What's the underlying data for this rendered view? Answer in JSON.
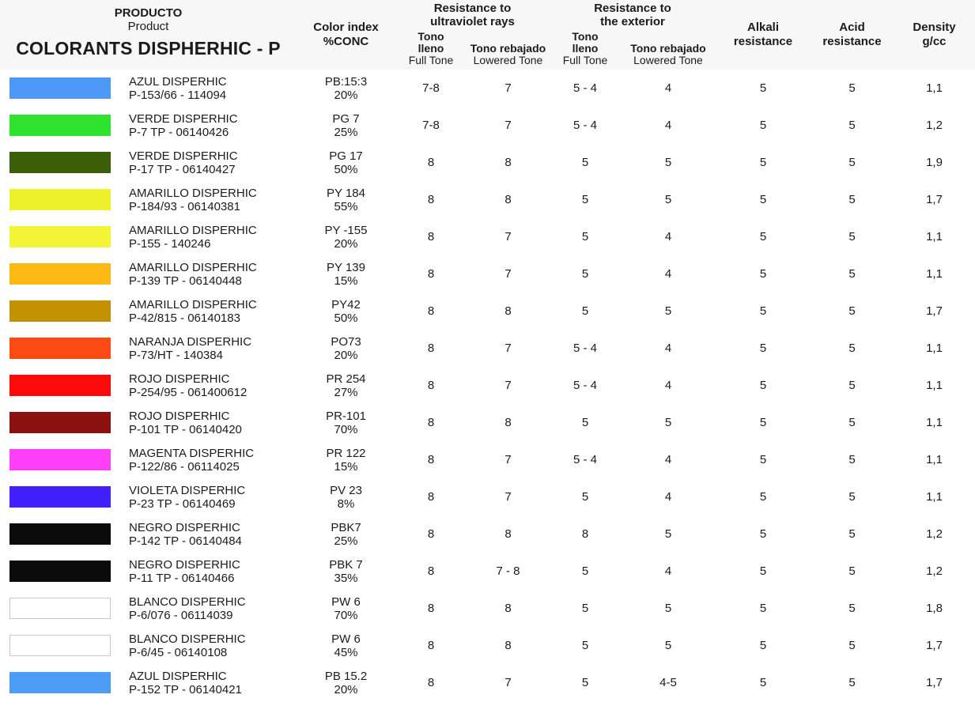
{
  "header": {
    "producto": "PRODUCTO",
    "product": "Product",
    "title": "COLORANTS DISPHERHIC - P",
    "color_index_line1": "Color index",
    "color_index_line2": "%CONC",
    "uv_title_line1": "Resistance to",
    "uv_title_line2": "ultraviolet rays",
    "ext_title_line1": "Resistance to",
    "ext_title_line2": "the exterior",
    "full_tone_line1": "Tono",
    "full_tone_line2": "lleno",
    "full_tone_line3": "Full Tone",
    "lowered_tone_line1": "Tono rebajado",
    "lowered_tone_line2": "Lowered Tone",
    "alkali_line1": "Alkali",
    "alkali_line2": "resistance",
    "acid_line1": "Acid",
    "acid_line2": "resistance",
    "density_line1": "Density",
    "density_line2": "g/cc"
  },
  "rows": [
    {
      "swatch_color": "#4d99f7",
      "name": "AZUL DISPERHIC",
      "code": "P-153/66 - 114094",
      "color_index": "PB:15:3",
      "conc": "20%",
      "uv_full": "7-8",
      "uv_lowered": "7",
      "ext_full": "5 - 4",
      "ext_lowered": "4",
      "alkali": "5",
      "acid": "5",
      "density": "1,1"
    },
    {
      "swatch_color": "#2ee22e",
      "name": "VERDE DISPERHIC",
      "code": "P-7 TP - 06140426",
      "color_index": "PG 7",
      "conc": "25%",
      "uv_full": "7-8",
      "uv_lowered": "7",
      "ext_full": "5 - 4",
      "ext_lowered": "4",
      "alkali": "5",
      "acid": "5",
      "density": "1,2"
    },
    {
      "swatch_color": "#3d5f0a",
      "name": "VERDE DISPERHIC",
      "code": "P-17 TP - 06140427",
      "color_index": "PG 17",
      "conc": "50%",
      "uv_full": "8",
      "uv_lowered": "8",
      "ext_full": "5",
      "ext_lowered": "5",
      "alkali": "5",
      "acid": "5",
      "density": "1,9"
    },
    {
      "swatch_color": "#edf22d",
      "name": "AMARILLO DISPERHIC",
      "code": "P-184/93 - 06140381",
      "color_index": "PY 184",
      "conc": "55%",
      "uv_full": "8",
      "uv_lowered": "8",
      "ext_full": "5",
      "ext_lowered": "5",
      "alkali": "5",
      "acid": "5",
      "density": "1,7"
    },
    {
      "swatch_color": "#f4f436",
      "name": "AMARILLO DISPERHIC",
      "code": "P-155 - 140246",
      "color_index": "PY -155",
      "conc": "20%",
      "uv_full": "8",
      "uv_lowered": "7",
      "ext_full": "5",
      "ext_lowered": "4",
      "alkali": "5",
      "acid": "5",
      "density": "1,1"
    },
    {
      "swatch_color": "#fdb813",
      "name": "AMARILLO DISPERHIC",
      "code": "P-139 TP - 06140448",
      "color_index": "PY 139",
      "conc": "15%",
      "uv_full": "8",
      "uv_lowered": "7",
      "ext_full": "5",
      "ext_lowered": "4",
      "alkali": "5",
      "acid": "5",
      "density": "1,1"
    },
    {
      "swatch_color": "#c29202",
      "name": "AMARILLO DISPERHIC",
      "code": "P-42/815 - 06140183",
      "color_index": "PY42",
      "conc": "50%",
      "uv_full": "8",
      "uv_lowered": "8",
      "ext_full": "5",
      "ext_lowered": "5",
      "alkali": "5",
      "acid": "5",
      "density": "1,7"
    },
    {
      "swatch_color": "#fb4a14",
      "name": "NARANJA DISPERHIC",
      "code": "P-73/HT - 140384",
      "color_index": "PO73",
      "conc": "20%",
      "uv_full": "8",
      "uv_lowered": "7",
      "ext_full": "5 - 4",
      "ext_lowered": "4",
      "alkali": "5",
      "acid": "5",
      "density": "1,1"
    },
    {
      "swatch_color": "#fa0a0a",
      "name": "ROJO DISPERHIC",
      "code": "P-254/95 - 061400612",
      "color_index": "PR 254",
      "conc": "27%",
      "uv_full": "8",
      "uv_lowered": "7",
      "ext_full": "5 - 4",
      "ext_lowered": "4",
      "alkali": "5",
      "acid": "5",
      "density": "1,1"
    },
    {
      "swatch_color": "#8d1010",
      "name": "ROJO DISPERHIC",
      "code": "P-101 TP - 06140420",
      "color_index": "PR-101",
      "conc": "70%",
      "uv_full": "8",
      "uv_lowered": "8",
      "ext_full": "5",
      "ext_lowered": "5",
      "alkali": "5",
      "acid": "5",
      "density": "1,1"
    },
    {
      "swatch_color": "#fd3efb",
      "name": "MAGENTA DISPERHIC",
      "code": "P-122/86 - 06114025",
      "color_index": "PR 122",
      "conc": "15%",
      "uv_full": "8",
      "uv_lowered": "7",
      "ext_full": "5 - 4",
      "ext_lowered": "4",
      "alkali": "5",
      "acid": "5",
      "density": "1,1"
    },
    {
      "swatch_color": "#4220fb",
      "name": "VIOLETA DISPERHIC",
      "code": "P-23 TP - 06140469",
      "color_index": "PV 23",
      "conc": "8%",
      "uv_full": "8",
      "uv_lowered": "7",
      "ext_full": "5",
      "ext_lowered": "4",
      "alkali": "5",
      "acid": "5",
      "density": "1,1"
    },
    {
      "swatch_color": "#0b0b0b",
      "name": "NEGRO DISPERHIC",
      "code": "P-142 TP - 06140484",
      "color_index": "PBK7",
      "conc": "25%",
      "uv_full": "8",
      "uv_lowered": "8",
      "ext_full": "8",
      "ext_lowered": "5",
      "alkali": "5",
      "acid": "5",
      "density": "1,2"
    },
    {
      "swatch_color": "#0b0b0b",
      "name": "NEGRO DISPERHIC",
      "code": "P-11 TP - 06140466",
      "color_index": "PBK 7",
      "conc": "35%",
      "uv_full": "8",
      "uv_lowered": "7 - 8",
      "ext_full": "5",
      "ext_lowered": "4",
      "alkali": "5",
      "acid": "5",
      "density": "1,2"
    },
    {
      "swatch_color": "#ffffff",
      "swatch_border": "#c9c9c9",
      "name": "BLANCO DISPERHIC",
      "code": "P-6/076 - 06114039",
      "color_index": "PW 6",
      "conc": "70%",
      "uv_full": "8",
      "uv_lowered": "8",
      "ext_full": "5",
      "ext_lowered": "5",
      "alkali": "5",
      "acid": "5",
      "density": "1,8"
    },
    {
      "swatch_color": "#ffffff",
      "swatch_border": "#c9c9c9",
      "name": "BLANCO DISPERHIC",
      "code": "P-6/45 - 06140108",
      "color_index": "PW 6",
      "conc": "45%",
      "uv_full": "8",
      "uv_lowered": "8",
      "ext_full": "5",
      "ext_lowered": "5",
      "alkali": "5",
      "acid": "5",
      "density": "1,7"
    },
    {
      "swatch_color": "#4d9df7",
      "name": "AZUL DISPERHIC",
      "code": "P-152 TP - 06140421",
      "color_index": "PB 15.2",
      "conc": "20%",
      "uv_full": "8",
      "uv_lowered": "7",
      "ext_full": "5",
      "ext_lowered": "4-5",
      "alkali": "5",
      "acid": "5",
      "density": "1,7"
    }
  ]
}
